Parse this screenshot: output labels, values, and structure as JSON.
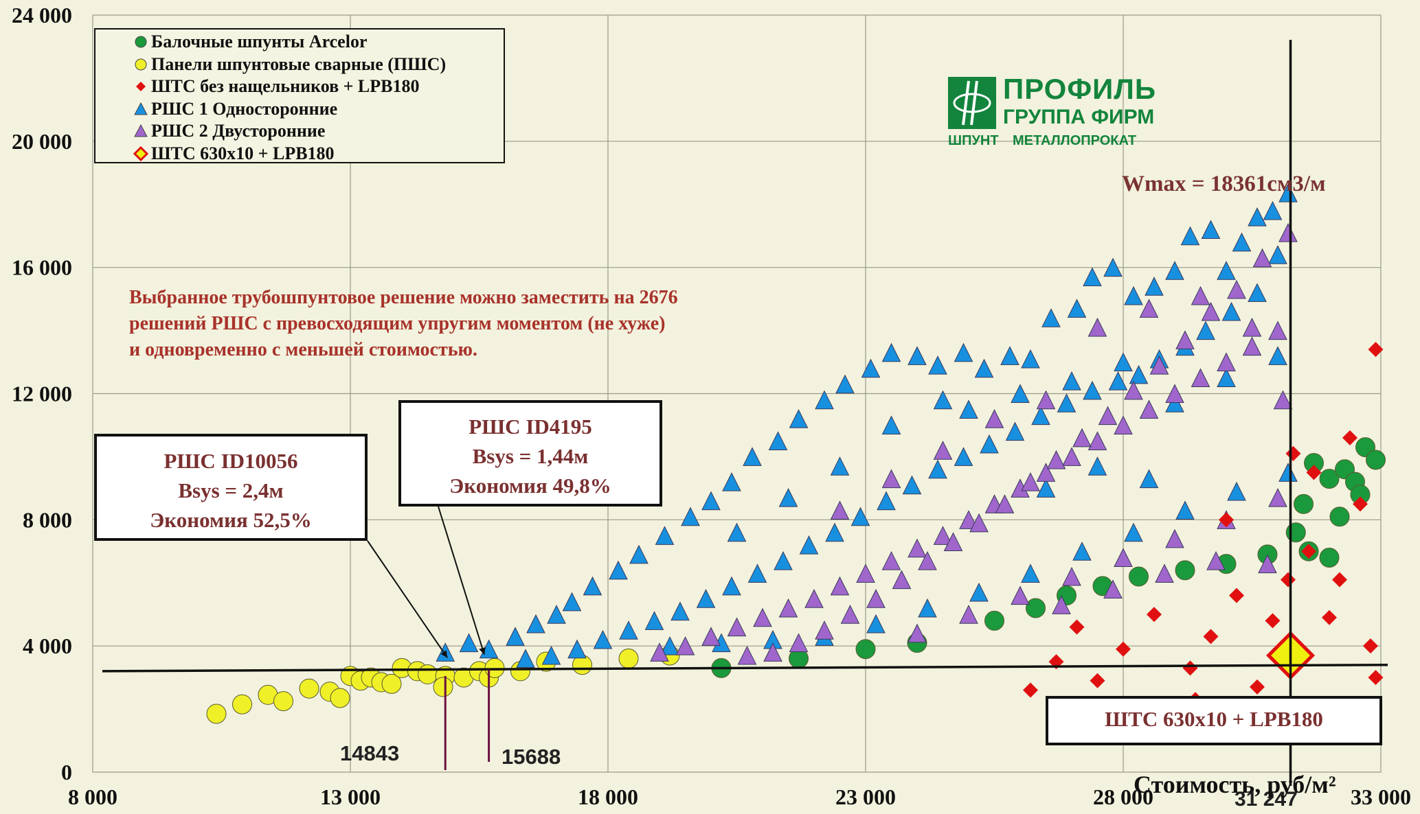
{
  "chart_data": {
    "type": "scatter",
    "title": "",
    "xlabel": "Стоимость, руб/м²",
    "ylabel": "",
    "xlim": [
      8000,
      33000
    ],
    "ylim": [
      0,
      24000
    ],
    "x_ticks": [
      "8 000",
      "13 000",
      "18 000",
      "23 000",
      "28 000",
      "33 000"
    ],
    "y_ticks": [
      "0",
      "4 000",
      "8 000",
      "12 000",
      "16 000",
      "20 000",
      "24 000"
    ],
    "grid": true,
    "legend_position": "top-left",
    "series": [
      {
        "name": "Балочные шпунты Arcelor",
        "marker": "circle",
        "color": "#1a9a3c",
        "points": [
          [
            20200,
            3300
          ],
          [
            21700,
            3600
          ],
          [
            23000,
            3900
          ],
          [
            24000,
            4100
          ],
          [
            25500,
            4800
          ],
          [
            26300,
            5200
          ],
          [
            26900,
            5600
          ],
          [
            27600,
            5900
          ],
          [
            28300,
            6200
          ],
          [
            29200,
            6400
          ],
          [
            30000,
            6600
          ],
          [
            30800,
            6900
          ],
          [
            31350,
            7600
          ],
          [
            31500,
            8500
          ],
          [
            31700,
            9800
          ],
          [
            32000,
            9300
          ],
          [
            32200,
            8100
          ],
          [
            32300,
            9600
          ],
          [
            32500,
            9200
          ],
          [
            32700,
            10300
          ],
          [
            32900,
            9900
          ],
          [
            32600,
            8800
          ],
          [
            31600,
            7000
          ],
          [
            32000,
            6800
          ]
        ]
      },
      {
        "name": "Панели шпунтовые сварные (ПШС)",
        "marker": "circle",
        "color": "#f0f028",
        "points": [
          [
            10400,
            1850
          ],
          [
            10900,
            2150
          ],
          [
            11400,
            2450
          ],
          [
            11700,
            2250
          ],
          [
            12200,
            2650
          ],
          [
            12600,
            2550
          ],
          [
            12800,
            2350
          ],
          [
            13000,
            3050
          ],
          [
            13200,
            2900
          ],
          [
            13400,
            3000
          ],
          [
            13600,
            2850
          ],
          [
            13800,
            2800
          ],
          [
            14000,
            3300
          ],
          [
            14300,
            3200
          ],
          [
            14500,
            3100
          ],
          [
            14843,
            3050
          ],
          [
            14800,
            2700
          ],
          [
            15200,
            3000
          ],
          [
            15500,
            3200
          ],
          [
            15688,
            3000
          ],
          [
            15800,
            3300
          ],
          [
            16300,
            3200
          ],
          [
            16800,
            3500
          ],
          [
            17500,
            3400
          ],
          [
            18400,
            3600
          ],
          [
            19200,
            3700
          ]
        ]
      },
      {
        "name": "ШТС без нащельников + LPB180",
        "marker": "diamond",
        "color": "#e01010",
        "points": [
          [
            26200,
            2600
          ],
          [
            26700,
            3500
          ],
          [
            27100,
            4600
          ],
          [
            27500,
            2900
          ],
          [
            28000,
            3900
          ],
          [
            28600,
            5000
          ],
          [
            28300,
            2000
          ],
          [
            29300,
            3300
          ],
          [
            29400,
            2300
          ],
          [
            29700,
            4300
          ],
          [
            30000,
            8000
          ],
          [
            30200,
            5600
          ],
          [
            30600,
            2700
          ],
          [
            30900,
            4800
          ],
          [
            31200,
            6100
          ],
          [
            31300,
            10100
          ],
          [
            31600,
            7000
          ],
          [
            31700,
            9500
          ],
          [
            32000,
            4900
          ],
          [
            32200,
            6100
          ],
          [
            32400,
            10600
          ],
          [
            32600,
            8500
          ],
          [
            32800,
            4000
          ],
          [
            32900,
            3000
          ],
          [
            32900,
            13400
          ]
        ]
      },
      {
        "name": "РШС 1 Односторонние",
        "marker": "triangle",
        "color": "#1890e0",
        "points": [
          [
            14843,
            3800
          ],
          [
            15688,
            3900
          ],
          [
            15300,
            4100
          ],
          [
            16200,
            4300
          ],
          [
            16600,
            4700
          ],
          [
            17000,
            5000
          ],
          [
            17300,
            5400
          ],
          [
            17700,
            5900
          ],
          [
            18200,
            6400
          ],
          [
            18600,
            6900
          ],
          [
            19100,
            7500
          ],
          [
            19600,
            8100
          ],
          [
            20000,
            8600
          ],
          [
            20400,
            9200
          ],
          [
            20800,
            10000
          ],
          [
            21300,
            10500
          ],
          [
            21700,
            11200
          ],
          [
            22200,
            11800
          ],
          [
            22600,
            12300
          ],
          [
            23100,
            12800
          ],
          [
            23500,
            13300
          ],
          [
            24000,
            13200
          ],
          [
            24400,
            12900
          ],
          [
            24900,
            13300
          ],
          [
            25300,
            12800
          ],
          [
            25800,
            13200
          ],
          [
            26200,
            13100
          ],
          [
            26600,
            14400
          ],
          [
            27100,
            14700
          ],
          [
            27400,
            15700
          ],
          [
            27800,
            16000
          ],
          [
            28200,
            15100
          ],
          [
            28600,
            15400
          ],
          [
            29000,
            15900
          ],
          [
            29300,
            17000
          ],
          [
            29700,
            17200
          ],
          [
            30000,
            15900
          ],
          [
            30300,
            16800
          ],
          [
            30600,
            17600
          ],
          [
            30900,
            17800
          ],
          [
            31200,
            18361
          ],
          [
            31000,
            16400
          ],
          [
            30600,
            15200
          ],
          [
            30100,
            14600
          ],
          [
            29600,
            14000
          ],
          [
            29200,
            13500
          ],
          [
            28700,
            13100
          ],
          [
            28300,
            12600
          ],
          [
            27900,
            12400
          ],
          [
            27400,
            12100
          ],
          [
            26900,
            11700
          ],
          [
            26400,
            11300
          ],
          [
            25900,
            10800
          ],
          [
            25400,
            10400
          ],
          [
            24900,
            10000
          ],
          [
            24400,
            9600
          ],
          [
            23900,
            9100
          ],
          [
            23400,
            8600
          ],
          [
            22900,
            8100
          ],
          [
            22400,
            7600
          ],
          [
            21900,
            7200
          ],
          [
            21400,
            6700
          ],
          [
            20900,
            6300
          ],
          [
            20400,
            5900
          ],
          [
            19900,
            5500
          ],
          [
            19400,
            5100
          ],
          [
            18900,
            4800
          ],
          [
            18400,
            4500
          ],
          [
            17900,
            4200
          ],
          [
            17400,
            3900
          ],
          [
            16900,
            3700
          ],
          [
            16400,
            3600
          ],
          [
            19200,
            4000
          ],
          [
            20200,
            4100
          ],
          [
            21200,
            4200
          ],
          [
            22200,
            4300
          ],
          [
            23200,
            4700
          ],
          [
            24200,
            5200
          ],
          [
            25200,
            5700
          ],
          [
            26200,
            6300
          ],
          [
            27200,
            7000
          ],
          [
            28200,
            7600
          ],
          [
            29200,
            8300
          ],
          [
            30200,
            8900
          ],
          [
            31200,
            9500
          ],
          [
            25000,
            11500
          ],
          [
            26000,
            12000
          ],
          [
            27000,
            12400
          ],
          [
            28000,
            13000
          ],
          [
            29000,
            11700
          ],
          [
            30000,
            12500
          ],
          [
            31000,
            13200
          ],
          [
            28500,
            9300
          ],
          [
            27500,
            9700
          ],
          [
            26500,
            9000
          ],
          [
            22500,
            9700
          ],
          [
            21500,
            8700
          ],
          [
            20500,
            7600
          ],
          [
            23500,
            11000
          ],
          [
            24500,
            11800
          ]
        ]
      },
      {
        "name": "РШС 2 Двусторонние",
        "marker": "triangle",
        "color": "#a066cc",
        "points": [
          [
            19000,
            3800
          ],
          [
            19500,
            4000
          ],
          [
            20000,
            4300
          ],
          [
            20500,
            4600
          ],
          [
            21000,
            4900
          ],
          [
            21500,
            5200
          ],
          [
            22000,
            5500
          ],
          [
            22500,
            5900
          ],
          [
            23000,
            6300
          ],
          [
            23500,
            6700
          ],
          [
            24000,
            7100
          ],
          [
            24500,
            7500
          ],
          [
            25000,
            8000
          ],
          [
            25500,
            8500
          ],
          [
            26000,
            9000
          ],
          [
            26500,
            9500
          ],
          [
            27000,
            10000
          ],
          [
            27500,
            10500
          ],
          [
            28000,
            11000
          ],
          [
            28500,
            11500
          ],
          [
            29000,
            12000
          ],
          [
            29500,
            12500
          ],
          [
            30000,
            13000
          ],
          [
            30500,
            13500
          ],
          [
            31000,
            14000
          ],
          [
            31200,
            17100
          ],
          [
            30700,
            16300
          ],
          [
            30200,
            15300
          ],
          [
            29700,
            14600
          ],
          [
            29200,
            13700
          ],
          [
            28700,
            12900
          ],
          [
            28200,
            12100
          ],
          [
            27700,
            11300
          ],
          [
            27200,
            10600
          ],
          [
            26700,
            9900
          ],
          [
            26200,
            9200
          ],
          [
            25700,
            8500
          ],
          [
            25200,
            7900
          ],
          [
            24700,
            7300
          ],
          [
            24200,
            6700
          ],
          [
            23700,
            6100
          ],
          [
            23200,
            5500
          ],
          [
            22700,
            5000
          ],
          [
            22200,
            4500
          ],
          [
            21700,
            4100
          ],
          [
            21200,
            3800
          ],
          [
            20700,
            3700
          ],
          [
            24000,
            4400
          ],
          [
            25000,
            5000
          ],
          [
            26000,
            5600
          ],
          [
            27000,
            6200
          ],
          [
            28000,
            6800
          ],
          [
            29000,
            7400
          ],
          [
            30000,
            8000
          ],
          [
            31000,
            8700
          ],
          [
            27500,
            14100
          ],
          [
            28500,
            14700
          ],
          [
            29500,
            15100
          ],
          [
            30500,
            14100
          ],
          [
            31100,
            11800
          ],
          [
            26500,
            11800
          ],
          [
            25500,
            11200
          ],
          [
            24500,
            10200
          ],
          [
            23500,
            9300
          ],
          [
            22500,
            8300
          ],
          [
            26800,
            5300
          ],
          [
            27800,
            5800
          ],
          [
            28800,
            6300
          ],
          [
            29800,
            6700
          ],
          [
            30800,
            6600
          ]
        ]
      },
      {
        "name": "ШТС 630х10 + LPB180",
        "marker": "diamond-outline",
        "color": "#f0f010",
        "edge": "#e01010",
        "points": [
          [
            31247,
            3700
          ]
        ]
      }
    ],
    "annotations": {
      "note": "Выбранное трубошпунтовое решение можно заместить на 2676 решений РШС с превосходящим упругим моментом (не хуже) и одновременно с меньшей стоимостью.",
      "wmax": "Wmax = 18361см3/м",
      "callout_left": [
        "РШС ID10056",
        "Bsys = 2,4м",
        "Экономия 52,5%"
      ],
      "callout_mid": [
        "РШС ID4195",
        "Bsys = 1,44м",
        "Экономия 49,8%"
      ],
      "callout_right": "ШТС 630х10 +  LPB180",
      "marker_left": "14843",
      "marker_mid": "15688",
      "marker_right": "31 247",
      "vertical_line_x": 31247,
      "threshold_line": [
        [
          8000,
          3200
        ],
        [
          33000,
          3400
        ]
      ]
    }
  },
  "logo": {
    "line1": "ПРОФИЛЬ",
    "line2": "ГРУППА ФИРМ",
    "line3": "ШПУНТ",
    "line4": "МЕТАЛЛОПРОКАТ"
  }
}
